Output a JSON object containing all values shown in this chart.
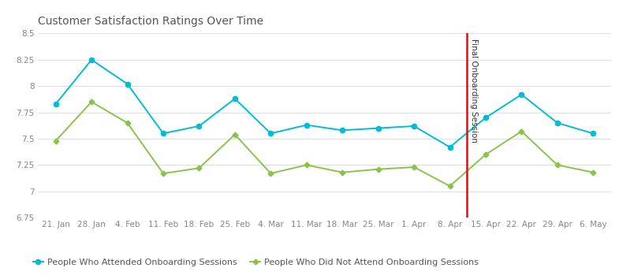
{
  "title": "Customer Satisfaction Ratings Over Time",
  "x_labels": [
    "21. Jan",
    "28. Jan",
    "4. Feb",
    "11. Feb",
    "18. Feb",
    "25. Feb",
    "4. Mar",
    "11. Mar",
    "18. Mar",
    "25. Mar",
    "1. Apr",
    "8. Apr",
    "15. Apr",
    "22. Apr",
    "29. Apr",
    "6. May"
  ],
  "attended": [
    7.83,
    8.25,
    8.02,
    7.55,
    7.62,
    7.88,
    7.55,
    7.63,
    7.58,
    7.6,
    7.62,
    7.42,
    7.7,
    7.92,
    7.65,
    7.55
  ],
  "not_attended": [
    7.48,
    7.85,
    7.65,
    7.17,
    7.22,
    7.54,
    7.17,
    7.25,
    7.18,
    7.21,
    7.23,
    7.05,
    7.35,
    7.57,
    7.25,
    7.18
  ],
  "attended_color": "#00bcd4",
  "not_attended_color": "#8bc34a",
  "vline_x_idx": 11,
  "vline_color": "red",
  "vline_label": "Final Onboarding Session",
  "ylim": [
    6.75,
    8.5
  ],
  "yticks": [
    6.75,
    7.0,
    7.25,
    7.5,
    7.75,
    8.0,
    8.25,
    8.5
  ],
  "legend_attended": "People Who Attended Onboarding Sessions",
  "legend_not_attended": "People Who Did Not Attend Onboarding Sessions",
  "background_color": "#ffffff",
  "grid_color": "#e0e0e0",
  "title_fontsize": 10,
  "axis_fontsize": 7.5,
  "legend_fontsize": 8
}
